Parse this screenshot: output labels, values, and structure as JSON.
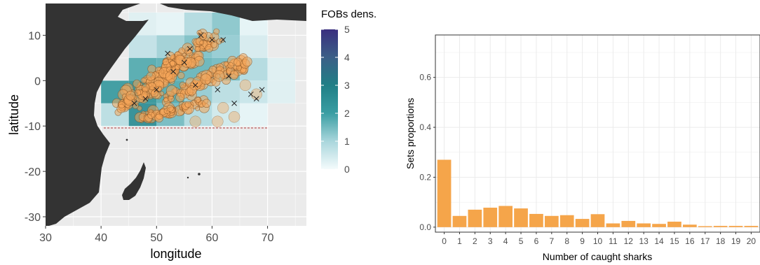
{
  "chart_data": [
    {
      "type": "heatmap",
      "xlabel": "longitude",
      "ylabel": "latitude",
      "xlim": [
        30,
        77
      ],
      "ylim": [
        -32,
        17
      ],
      "x_ticks": [
        30,
        40,
        50,
        60,
        70
      ],
      "y_ticks": [
        10,
        0,
        -10,
        -20,
        -30
      ],
      "x_tick_labels": [
        "30",
        "40",
        "50",
        "60",
        "70"
      ],
      "y_tick_labels": [
        "10",
        "0",
        "-10",
        "-20",
        "-30"
      ],
      "grid": true,
      "colors": {
        "panel": "#ebebeb",
        "land": "#333333",
        "shark_points": "#f5a55a",
        "no_shark_marker": "#222222",
        "boundary_line": "#b03a3a"
      },
      "density_cells": [
        {
          "lon": 45,
          "lat": 10,
          "density": 0.3
        },
        {
          "lon": 50,
          "lat": 10,
          "density": 0.2
        },
        {
          "lon": 55,
          "lat": 10,
          "density": 0.9
        },
        {
          "lon": 60,
          "lat": 10,
          "density": 1.3
        },
        {
          "lon": 65,
          "lat": 10,
          "density": 0.2
        },
        {
          "lon": 45,
          "lat": 5,
          "density": 0.7
        },
        {
          "lon": 50,
          "lat": 5,
          "density": 1.1
        },
        {
          "lon": 55,
          "lat": 5,
          "density": 1.4
        },
        {
          "lon": 60,
          "lat": 5,
          "density": 1.2
        },
        {
          "lon": 65,
          "lat": 5,
          "density": 0.4
        },
        {
          "lon": 45,
          "lat": 0,
          "density": 1.8
        },
        {
          "lon": 50,
          "lat": 0,
          "density": 1.7
        },
        {
          "lon": 55,
          "lat": 0,
          "density": 1.6
        },
        {
          "lon": 60,
          "lat": 0,
          "density": 1.5
        },
        {
          "lon": 65,
          "lat": 0,
          "density": 0.9
        },
        {
          "lon": 70,
          "lat": 0,
          "density": 0.3
        },
        {
          "lon": 40,
          "lat": -5,
          "density": 2.2
        },
        {
          "lon": 45,
          "lat": -5,
          "density": 2.4
        },
        {
          "lon": 50,
          "lat": -5,
          "density": 1.8
        },
        {
          "lon": 55,
          "lat": -5,
          "density": 1.2
        },
        {
          "lon": 60,
          "lat": -5,
          "density": 0.8
        },
        {
          "lon": 65,
          "lat": -5,
          "density": 0.6
        },
        {
          "lon": 70,
          "lat": -5,
          "density": 0.3
        },
        {
          "lon": 40,
          "lat": -10,
          "density": 0.8
        },
        {
          "lon": 45,
          "lat": -10,
          "density": 2.6
        },
        {
          "lon": 50,
          "lat": -10,
          "density": 1.5
        },
        {
          "lon": 55,
          "lat": -10,
          "density": 0.9
        },
        {
          "lon": 60,
          "lat": -10,
          "density": 0.5
        },
        {
          "lon": 65,
          "lat": -10,
          "density": 0.2
        }
      ],
      "legend": {
        "title": "FOBs dens.",
        "placement": "right",
        "min": 0,
        "max": 5,
        "tick_values": [
          5,
          4,
          3,
          2,
          1,
          0
        ],
        "tick_labels": [
          "5",
          "4",
          "3",
          "2",
          "1",
          "0"
        ],
        "color_stops": [
          "#f4fbfc",
          "#a9d6dc",
          "#3a9ea3",
          "#1f7f86",
          "#3b5f87",
          "#3a2f7f"
        ]
      }
    },
    {
      "type": "bar",
      "xlabel": "Number of caught sharks",
      "ylabel": "Sets proportions",
      "categories": [
        "0",
        "1",
        "2",
        "3",
        "4",
        "5",
        "6",
        "7",
        "8",
        "9",
        "10",
        "11",
        "12",
        "13",
        "14",
        "15",
        "16",
        "17",
        "18",
        "19",
        "20"
      ],
      "values": [
        0.27,
        0.045,
        0.07,
        0.078,
        0.085,
        0.075,
        0.053,
        0.045,
        0.048,
        0.033,
        0.052,
        0.015,
        0.025,
        0.015,
        0.013,
        0.022,
        0.01,
        0.004,
        0.005,
        0.005,
        0.005
      ],
      "ylim": [
        -0.02,
        0.77
      ],
      "y_ticks": [
        0.0,
        0.2,
        0.4,
        0.6
      ],
      "y_tick_labels": [
        "0.0",
        "0.2",
        "0.4",
        "0.6"
      ],
      "grid": true,
      "colors": {
        "bar": "#f5a54a",
        "grid": "#ebebeb",
        "border": "#333333"
      }
    }
  ]
}
